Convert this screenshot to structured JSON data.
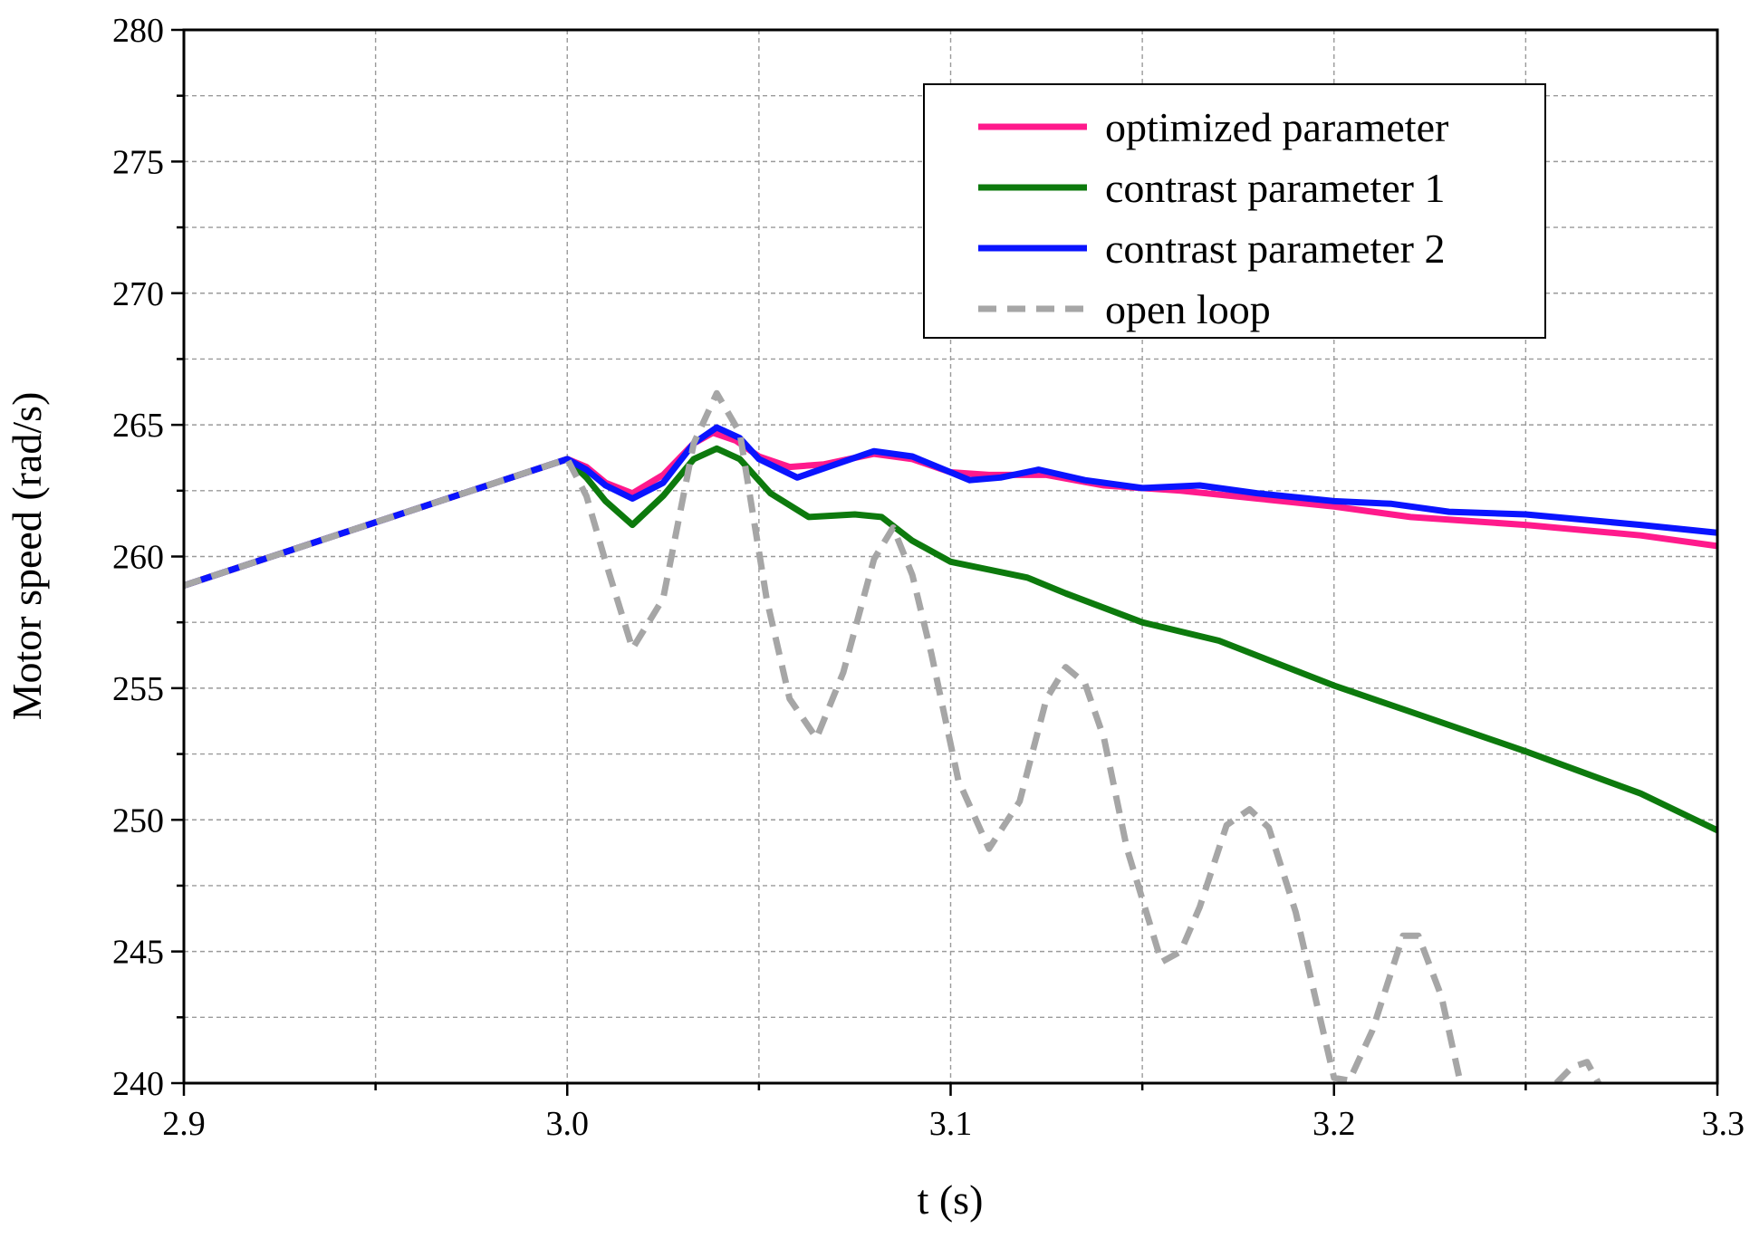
{
  "chart_data": {
    "type": "line",
    "title": "",
    "xlabel": "t (s)",
    "ylabel": "Motor speed (rad/s)",
    "xlim": [
      2.9,
      3.3
    ],
    "ylim": [
      240,
      280
    ],
    "x_ticks": [
      2.9,
      3.0,
      3.1,
      3.2,
      3.3
    ],
    "x_tick_labels": [
      "2.9",
      "3.0",
      "3.1",
      "3.2",
      "3.3"
    ],
    "y_ticks": [
      240,
      245,
      250,
      255,
      260,
      265,
      270,
      275,
      280
    ],
    "y_tick_labels": [
      "240",
      "245",
      "250",
      "255",
      "260",
      "265",
      "270",
      "275",
      "280"
    ],
    "x_minor_step": 0.05,
    "y_minor_step": 2.5,
    "grid": true,
    "legend_position": "top-right",
    "series": [
      {
        "name": "optimized parameter",
        "color": "#ff1a8c",
        "dash": "solid",
        "points": [
          [
            2.9,
            258.9
          ],
          [
            3.0,
            263.7
          ],
          [
            3.005,
            263.4
          ],
          [
            3.01,
            262.8
          ],
          [
            3.017,
            262.4
          ],
          [
            3.025,
            263.1
          ],
          [
            3.033,
            264.3
          ],
          [
            3.038,
            264.7
          ],
          [
            3.044,
            264.4
          ],
          [
            3.05,
            263.8
          ],
          [
            3.058,
            263.4
          ],
          [
            3.067,
            263.5
          ],
          [
            3.08,
            263.9
          ],
          [
            3.09,
            263.7
          ],
          [
            3.1,
            263.2
          ],
          [
            3.11,
            263.1
          ],
          [
            3.125,
            263.1
          ],
          [
            3.14,
            262.7
          ],
          [
            3.16,
            262.5
          ],
          [
            3.18,
            262.2
          ],
          [
            3.2,
            261.9
          ],
          [
            3.22,
            261.5
          ],
          [
            3.25,
            261.2
          ],
          [
            3.28,
            260.8
          ],
          [
            3.3,
            260.4
          ]
        ]
      },
      {
        "name": "contrast parameter 1",
        "color": "#0d7a0d",
        "dash": "solid",
        "points": [
          [
            2.9,
            258.9
          ],
          [
            3.0,
            263.7
          ],
          [
            3.005,
            263.0
          ],
          [
            3.01,
            262.1
          ],
          [
            3.017,
            261.2
          ],
          [
            3.025,
            262.3
          ],
          [
            3.033,
            263.7
          ],
          [
            3.039,
            264.1
          ],
          [
            3.045,
            263.7
          ],
          [
            3.053,
            262.4
          ],
          [
            3.063,
            261.5
          ],
          [
            3.075,
            261.6
          ],
          [
            3.082,
            261.5
          ],
          [
            3.09,
            260.6
          ],
          [
            3.1,
            259.8
          ],
          [
            3.11,
            259.5
          ],
          [
            3.12,
            259.2
          ],
          [
            3.13,
            258.6
          ],
          [
            3.15,
            257.5
          ],
          [
            3.17,
            256.8
          ],
          [
            3.2,
            255.1
          ],
          [
            3.22,
            254.1
          ],
          [
            3.25,
            252.6
          ],
          [
            3.28,
            251.0
          ],
          [
            3.3,
            249.6
          ]
        ]
      },
      {
        "name": "contrast parameter 2",
        "color": "#0a14ff",
        "dash": "solid",
        "points": [
          [
            2.9,
            258.9
          ],
          [
            3.0,
            263.7
          ],
          [
            3.005,
            263.3
          ],
          [
            3.01,
            262.7
          ],
          [
            3.017,
            262.2
          ],
          [
            3.025,
            262.8
          ],
          [
            3.033,
            264.3
          ],
          [
            3.039,
            264.9
          ],
          [
            3.045,
            264.5
          ],
          [
            3.05,
            263.7
          ],
          [
            3.06,
            263.0
          ],
          [
            3.07,
            263.5
          ],
          [
            3.08,
            264.0
          ],
          [
            3.09,
            263.8
          ],
          [
            3.1,
            263.2
          ],
          [
            3.105,
            262.9
          ],
          [
            3.113,
            263.0
          ],
          [
            3.123,
            263.3
          ],
          [
            3.135,
            262.9
          ],
          [
            3.15,
            262.6
          ],
          [
            3.165,
            262.7
          ],
          [
            3.18,
            262.4
          ],
          [
            3.2,
            262.1
          ],
          [
            3.215,
            262.0
          ],
          [
            3.23,
            261.7
          ],
          [
            3.25,
            261.6
          ],
          [
            3.28,
            261.2
          ],
          [
            3.3,
            260.9
          ]
        ]
      },
      {
        "name": "open loop",
        "color": "#a6a6a6",
        "dash": "dashed",
        "points": [
          [
            2.9,
            258.9
          ],
          [
            3.0,
            263.7
          ],
          [
            3.005,
            262.3
          ],
          [
            3.01,
            259.8
          ],
          [
            3.017,
            256.5
          ],
          [
            3.025,
            258.4
          ],
          [
            3.033,
            264.3
          ],
          [
            3.039,
            266.2
          ],
          [
            3.045,
            264.7
          ],
          [
            3.052,
            258.4
          ],
          [
            3.058,
            254.6
          ],
          [
            3.065,
            253.1
          ],
          [
            3.072,
            255.6
          ],
          [
            3.08,
            259.9
          ],
          [
            3.085,
            261.1
          ],
          [
            3.09,
            259.3
          ],
          [
            3.095,
            256.3
          ],
          [
            3.102,
            251.5
          ],
          [
            3.11,
            248.9
          ],
          [
            3.118,
            250.7
          ],
          [
            3.125,
            254.6
          ],
          [
            3.13,
            255.8
          ],
          [
            3.135,
            255.2
          ],
          [
            3.14,
            253.1
          ],
          [
            3.146,
            248.9
          ],
          [
            3.155,
            244.6
          ],
          [
            3.16,
            245.0
          ],
          [
            3.165,
            246.7
          ],
          [
            3.172,
            249.8
          ],
          [
            3.178,
            250.4
          ],
          [
            3.183,
            249.7
          ],
          [
            3.19,
            246.5
          ],
          [
            3.196,
            242.7
          ],
          [
            3.2,
            240.2
          ],
          [
            3.204,
            240.1
          ],
          [
            3.21,
            242.0
          ],
          [
            3.218,
            245.6
          ],
          [
            3.222,
            245.6
          ],
          [
            3.228,
            243.3
          ],
          [
            3.233,
            240.0
          ]
        ]
      },
      {
        "name": "open loop (tail)",
        "color": "#a6a6a6",
        "dash": "dashed",
        "points": [
          [
            3.258,
            240.0
          ],
          [
            3.262,
            240.6
          ],
          [
            3.266,
            240.8
          ],
          [
            3.269,
            240.0
          ]
        ]
      }
    ]
  },
  "legend": {
    "items": [
      {
        "label": "optimized parameter",
        "color": "#ff1a8c",
        "dash": "solid"
      },
      {
        "label": "contrast parameter 1",
        "color": "#0d7a0d",
        "dash": "solid"
      },
      {
        "label": "contrast parameter 2",
        "color": "#0a14ff",
        "dash": "solid"
      },
      {
        "label": "open loop",
        "color": "#a6a6a6",
        "dash": "dashed"
      }
    ]
  }
}
